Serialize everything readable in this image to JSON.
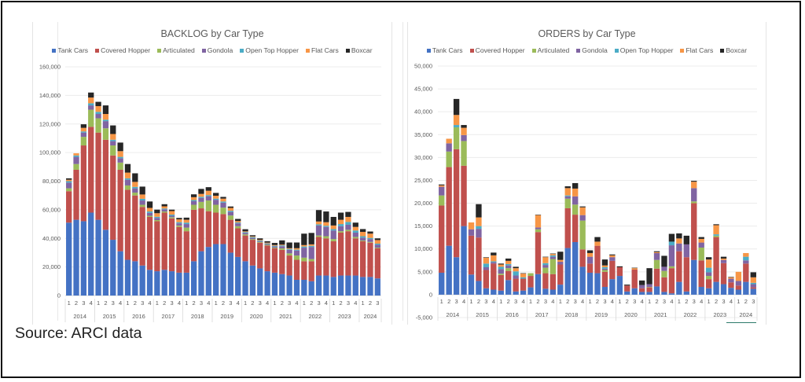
{
  "source_note": "Source: ARCI data",
  "chart_data": [
    {
      "type": "bar",
      "stacked": true,
      "title": "BACKLOG by Car Type",
      "xlabel": "",
      "ylabel": "",
      "ylim": [
        0,
        160000
      ],
      "yticks": [
        0,
        20000,
        40000,
        60000,
        80000,
        100000,
        120000,
        140000,
        160000
      ],
      "ytick_labels": [
        "0",
        "20,000",
        "40,000",
        "60,000",
        "80,000",
        "100,000",
        "120,000",
        "140,000",
        "160,000"
      ],
      "grid": true,
      "legend": "top",
      "years": [
        "2014",
        "2015",
        "2016",
        "2017",
        "2018",
        "2019",
        "2020",
        "2021",
        "2022",
        "2023",
        "2024"
      ],
      "quarters_per_year": [
        4,
        4,
        4,
        4,
        4,
        4,
        4,
        4,
        4,
        4,
        3
      ],
      "categories": [
        "2014 Q1",
        "2014 Q2",
        "2014 Q3",
        "2014 Q4",
        "2015 Q1",
        "2015 Q2",
        "2015 Q3",
        "2015 Q4",
        "2016 Q1",
        "2016 Q2",
        "2016 Q3",
        "2016 Q4",
        "2017 Q1",
        "2017 Q2",
        "2017 Q3",
        "2017 Q4",
        "2018 Q1",
        "2018 Q2",
        "2018 Q3",
        "2018 Q4",
        "2019 Q1",
        "2019 Q2",
        "2019 Q3",
        "2019 Q4",
        "2020 Q1",
        "2020 Q2",
        "2020 Q3",
        "2020 Q4",
        "2021 Q1",
        "2021 Q2",
        "2021 Q3",
        "2021 Q4",
        "2022 Q1",
        "2022 Q2",
        "2022 Q3",
        "2022 Q4",
        "2023 Q1",
        "2023 Q2",
        "2023 Q3",
        "2023 Q4",
        "2024 Q1",
        "2024 Q2",
        "2024 Q3"
      ],
      "series": [
        {
          "name": "Tank Cars",
          "color": "#4472C4",
          "values": [
            51000,
            53000,
            52000,
            58000,
            53000,
            46000,
            39000,
            31000,
            25000,
            24000,
            21000,
            18000,
            17000,
            18000,
            17000,
            16000,
            16000,
            24000,
            31000,
            34000,
            36000,
            36000,
            30000,
            27000,
            24000,
            21000,
            19000,
            17000,
            16000,
            15000,
            14000,
            11000,
            11000,
            10000,
            14000,
            14000,
            13000,
            14000,
            14000,
            14000,
            13000,
            13000,
            12000
          ]
        },
        {
          "name": "Covered Hopper",
          "color": "#C0504D",
          "values": [
            22000,
            35000,
            53000,
            60000,
            61000,
            63000,
            59000,
            57000,
            49000,
            46000,
            41000,
            37000,
            35000,
            40000,
            37000,
            32000,
            29000,
            36000,
            30000,
            25000,
            22000,
            21000,
            23000,
            20000,
            18000,
            18000,
            18000,
            18000,
            17000,
            17000,
            14000,
            14000,
            13000,
            14000,
            27000,
            26000,
            25000,
            30000,
            31000,
            26000,
            25000,
            24000,
            21000
          ]
        },
        {
          "name": "Articulated",
          "color": "#9BBB59",
          "values": [
            2000,
            4000,
            6000,
            12000,
            10000,
            8000,
            7000,
            5000,
            3000,
            2000,
            1500,
            800,
            800,
            800,
            800,
            1000,
            2500,
            3500,
            4500,
            7500,
            5500,
            4500,
            3000,
            1500,
            800,
            500,
            500,
            500,
            500,
            1000,
            1500,
            3000,
            2500,
            1500,
            1000,
            1500,
            1500,
            1000,
            1000,
            1000,
            500,
            500,
            500
          ]
        },
        {
          "name": "Gondola",
          "color": "#8064A2",
          "values": [
            4000,
            5000,
            3000,
            3000,
            3000,
            5000,
            3000,
            3000,
            4000,
            3000,
            3000,
            2000,
            1500,
            1500,
            1000,
            1500,
            2500,
            2500,
            2800,
            3000,
            3500,
            3500,
            2500,
            2000,
            1000,
            800,
            500,
            500,
            800,
            1500,
            2500,
            3500,
            7000,
            8500,
            7000,
            6500,
            6000,
            3500,
            3500,
            3000,
            2000,
            2000,
            2000
          ]
        },
        {
          "name": "Open Top Hopper",
          "color": "#4BACC6",
          "values": [
            1000,
            1000,
            800,
            1500,
            1500,
            1000,
            1000,
            1000,
            1000,
            1000,
            1200,
            1000,
            800,
            600,
            800,
            800,
            1000,
            800,
            800,
            800,
            800,
            800,
            800,
            600,
            600,
            600,
            500,
            500,
            500,
            600,
            600,
            600,
            800,
            800,
            800,
            800,
            1000,
            1500,
            2000,
            1500,
            1000,
            800,
            800
          ]
        },
        {
          "name": "Flat Cars",
          "color": "#F79646",
          "values": [
            1000,
            1500,
            2500,
            4000,
            4000,
            4000,
            4000,
            4000,
            4000,
            3500,
            3000,
            2500,
            2500,
            1500,
            2500,
            2000,
            2000,
            2000,
            2000,
            3000,
            2000,
            2000,
            2000,
            1000,
            500,
            500,
            500,
            500,
            500,
            500,
            500,
            1000,
            1000,
            1000,
            2000,
            2500,
            2500,
            3000,
            3500,
            2500,
            3000,
            3000,
            2500
          ]
        },
        {
          "name": "Boxcar",
          "color": "#262626",
          "values": [
            1000,
            0,
            2500,
            3500,
            3000,
            6000,
            6000,
            6000,
            6000,
            6000,
            5500,
            4500,
            2500,
            1500,
            1000,
            1000,
            1500,
            2000,
            3500,
            2500,
            2000,
            1200,
            1000,
            1500,
            1500,
            800,
            1000,
            1000,
            1500,
            3000,
            4000,
            4000,
            8000,
            8000,
            8000,
            7500,
            6000,
            5000,
            3500,
            3000,
            2000,
            1500,
            1200
          ]
        }
      ]
    },
    {
      "type": "bar",
      "stacked": true,
      "title": "ORDERS by Car Type",
      "xlabel": "",
      "ylabel": "",
      "ylim": [
        -5000,
        50000
      ],
      "yticks": [
        -5000,
        0,
        5000,
        10000,
        15000,
        20000,
        25000,
        30000,
        35000,
        40000,
        45000,
        50000
      ],
      "ytick_labels": [
        "-5,000",
        "0",
        "5,000",
        "10,000",
        "15,000",
        "20,000",
        "25,000",
        "30,000",
        "35,000",
        "40,000",
        "45,000",
        "50,000"
      ],
      "grid": true,
      "legend": "top",
      "years": [
        "2014",
        "2015",
        "2016",
        "2017",
        "2018",
        "2019",
        "2020",
        "2021",
        "2022",
        "2023",
        "2024"
      ],
      "quarters_per_year": [
        4,
        4,
        4,
        4,
        4,
        4,
        4,
        4,
        4,
        4,
        3
      ],
      "categories": [
        "2014 Q1",
        "2014 Q2",
        "2014 Q3",
        "2014 Q4",
        "2015 Q1",
        "2015 Q2",
        "2015 Q3",
        "2015 Q4",
        "2016 Q1",
        "2016 Q2",
        "2016 Q3",
        "2016 Q4",
        "2017 Q1",
        "2017 Q2",
        "2017 Q3",
        "2017 Q4",
        "2018 Q1",
        "2018 Q2",
        "2018 Q3",
        "2018 Q4",
        "2019 Q1",
        "2019 Q2",
        "2019 Q3",
        "2019 Q4",
        "2020 Q1",
        "2020 Q2",
        "2020 Q3",
        "2020 Q4",
        "2021 Q1",
        "2021 Q2",
        "2021 Q3",
        "2021 Q4",
        "2022 Q1",
        "2022 Q2",
        "2022 Q3",
        "2022 Q4",
        "2023 Q1",
        "2023 Q2",
        "2023 Q3",
        "2023 Q4",
        "2024 Q1",
        "2024 Q2",
        "2024 Q3"
      ],
      "series": [
        {
          "name": "Tank Cars",
          "color": "#4472C4",
          "values": [
            4800,
            10700,
            8200,
            15000,
            4400,
            3000,
            1400,
            1100,
            900,
            3200,
            700,
            900,
            1600,
            4500,
            1300,
            1100,
            2200,
            10200,
            11500,
            6100,
            4800,
            4700,
            1700,
            3400,
            4100,
            700,
            1400,
            600,
            600,
            1800,
            600,
            300,
            2800,
            700,
            7600,
            1700,
            1400,
            2800,
            2300,
            1500,
            1100,
            2800,
            1300
          ]
        },
        {
          "name": "Covered Hopper",
          "color": "#C0504D",
          "values": [
            14700,
            17200,
            23600,
            13200,
            8500,
            9500,
            4000,
            5700,
            3400,
            2000,
            2800,
            2600,
            2500,
            9200,
            3400,
            3400,
            4400,
            8700,
            6000,
            3800,
            2000,
            6000,
            3300,
            4000,
            1900,
            1300,
            4100,
            800,
            1000,
            3900,
            3200,
            5500,
            6700,
            7500,
            12400,
            5800,
            2000,
            9800,
            4600,
            1200,
            900,
            4000,
            300
          ]
        },
        {
          "name": "Articulated",
          "color": "#9BBB59",
          "values": [
            2200,
            3400,
            4800,
            5400,
            0,
            0,
            0,
            0,
            300,
            600,
            0,
            0,
            600,
            600,
            1200,
            3300,
            0,
            2100,
            2200,
            6300,
            0,
            0,
            400,
            0,
            0,
            0,
            0,
            0,
            100,
            1900,
            1400,
            400,
            0,
            0,
            400,
            2800,
            700,
            300,
            0,
            0,
            0,
            0,
            0
          ]
        },
        {
          "name": "Gondola",
          "color": "#8064A2",
          "values": [
            1900,
            1800,
            0,
            1300,
            1400,
            1900,
            600,
            300,
            1000,
            600,
            700,
            0,
            0,
            400,
            600,
            500,
            600,
            500,
            1800,
            1200,
            1500,
            0,
            300,
            800,
            0,
            0,
            0,
            700,
            600,
            1500,
            900,
            4600,
            1700,
            2800,
            2900,
            1100,
            800,
            0,
            700,
            800,
            1000,
            700,
            700
          ]
        },
        {
          "name": "Open Top Hopper",
          "color": "#4BACC6",
          "values": [
            0,
            0,
            500,
            0,
            0,
            600,
            800,
            200,
            500,
            300,
            900,
            300,
            0,
            0,
            400,
            300,
            0,
            200,
            0,
            0,
            0,
            0,
            300,
            0,
            0,
            0,
            0,
            0,
            0,
            0,
            0,
            800,
            0,
            0,
            0,
            0,
            1000,
            300,
            0,
            0,
            0,
            800,
            300
          ]
        },
        {
          "name": "Flat Cars",
          "color": "#F79646",
          "values": [
            300,
            1000,
            2200,
            1600,
            1500,
            1900,
            1300,
            1300,
            500,
            700,
            700,
            800,
            0,
            2700,
            1300,
            300,
            400,
            1600,
            1700,
            1700,
            800,
            900,
            400,
            400,
            0,
            0,
            300,
            0,
            0,
            200,
            0,
            0,
            1100,
            0,
            1400,
            800,
            1800,
            2000,
            300,
            300,
            2000,
            800,
            1200
          ]
        },
        {
          "name": "Boxcar",
          "color": "#262626",
          "values": [
            200,
            0,
            3500,
            600,
            0,
            2900,
            100,
            600,
            200,
            500,
            300,
            100,
            0,
            100,
            100,
            100,
            1800,
            400,
            1200,
            200,
            600,
            1000,
            1300,
            200,
            200,
            200,
            100,
            1000,
            3500,
            200,
            2400,
            1700,
            1100,
            1900,
            200,
            400,
            500,
            200,
            400,
            100,
            0,
            0,
            1100
          ]
        }
      ]
    }
  ]
}
